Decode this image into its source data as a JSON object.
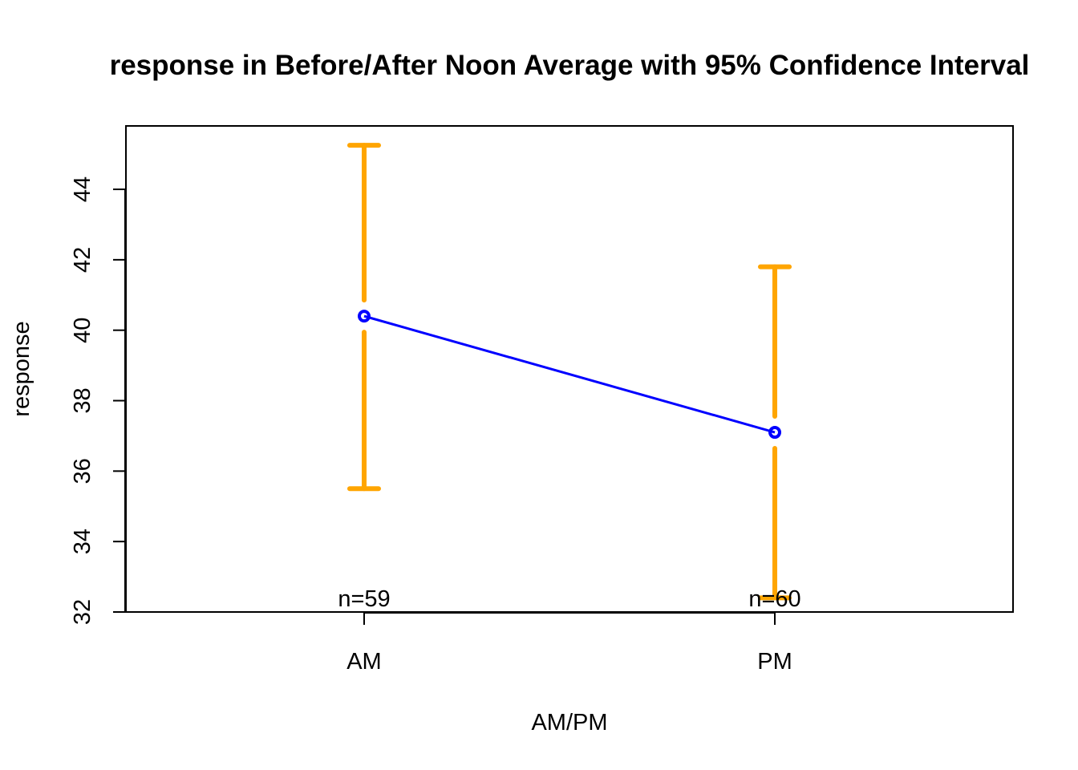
{
  "chart_data": {
    "type": "line",
    "title": "response in Before/After Noon Average with 95% Confidence Interval",
    "xlabel": "AM/PM",
    "ylabel": "response",
    "categories": [
      "AM",
      "PM"
    ],
    "series": [
      {
        "values": [
          40.4,
          37.1
        ],
        "ci_lower": [
          35.5,
          32.4
        ],
        "ci_upper": [
          45.25,
          41.8
        ],
        "n_labels": [
          "n=59",
          "n=60"
        ]
      }
    ],
    "ylim": [
      32,
      45.8
    ],
    "yticks": [
      32,
      34,
      36,
      38,
      40,
      42,
      44
    ],
    "ytick_labels": [
      "32",
      "34",
      "36",
      "38",
      "40",
      "42",
      "44"
    ],
    "grid": false,
    "legend": "none",
    "colors": {
      "line": "#0000ff",
      "error_bar": "#ffa500",
      "frame": "#000000"
    }
  }
}
